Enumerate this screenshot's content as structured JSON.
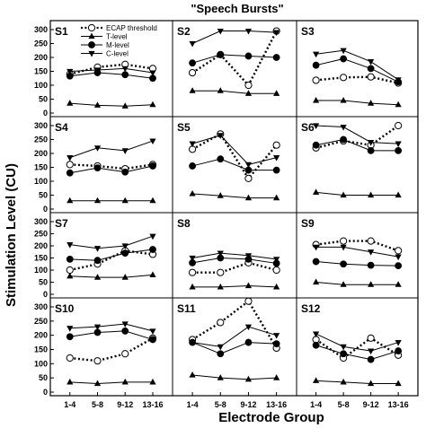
{
  "chart_data": {
    "type": "line",
    "title": "\"Speech Bursts\"",
    "xlabel": "Electrode Group",
    "ylabel": "Stimulation Level (CU)",
    "categories": [
      "1-4",
      "5-8",
      "9-12",
      "13-16"
    ],
    "ylim": [
      0,
      300
    ],
    "yticks": [
      0,
      50,
      100,
      150,
      200,
      250,
      300
    ],
    "grid": false,
    "legend": {
      "placement": "top-left panel",
      "entries": [
        "ECAP threshold",
        "T-level",
        "M-level",
        "C-level"
      ]
    },
    "series_style": {
      "ECAP threshold": {
        "marker": "open-circle",
        "line": "dotted"
      },
      "T-level": {
        "marker": "triangle-up",
        "line": "solid"
      },
      "M-level": {
        "marker": "filled-circle",
        "line": "solid"
      },
      "C-level": {
        "marker": "triangle-down",
        "line": "solid"
      }
    },
    "panels": [
      {
        "label": "S1",
        "series": [
          {
            "name": "ECAP threshold",
            "values": [
              140,
              165,
              175,
              160
            ]
          },
          {
            "name": "T-level",
            "values": [
              35,
              28,
              25,
              30
            ]
          },
          {
            "name": "M-level",
            "values": [
              133,
              145,
              138,
              125
            ]
          },
          {
            "name": "C-level",
            "values": [
              150,
              155,
              160,
              145
            ]
          }
        ]
      },
      {
        "label": "S2",
        "series": [
          {
            "name": "ECAP threshold",
            "values": [
              145,
              210,
              100,
              295
            ]
          },
          {
            "name": "T-level",
            "values": [
              80,
              80,
              70,
              70
            ]
          },
          {
            "name": "M-level",
            "values": [
              180,
              210,
              205,
              200
            ]
          },
          {
            "name": "C-level",
            "values": [
              250,
              295,
              295,
              290
            ]
          }
        ]
      },
      {
        "label": "S3",
        "series": [
          {
            "name": "ECAP threshold",
            "values": [
              118,
              128,
              130,
              108
            ]
          },
          {
            "name": "T-level",
            "values": [
              45,
              45,
              35,
              30
            ]
          },
          {
            "name": "M-level",
            "values": [
              172,
              195,
              160,
              112
            ]
          },
          {
            "name": "C-level",
            "values": [
              212,
              225,
              185,
              120
            ]
          }
        ]
      },
      {
        "label": "S4",
        "series": [
          {
            "name": "ECAP threshold",
            "values": [
              160,
              155,
              145,
              160
            ]
          },
          {
            "name": "T-level",
            "values": [
              30,
              30,
              30,
              30
            ]
          },
          {
            "name": "M-level",
            "values": [
              130,
              148,
              133,
              155
            ]
          },
          {
            "name": "C-level",
            "values": [
              185,
              220,
              210,
              245
            ]
          }
        ]
      },
      {
        "label": "S5",
        "series": [
          {
            "name": "ECAP threshold",
            "values": [
              215,
              270,
              110,
              230
            ]
          },
          {
            "name": "T-level",
            "values": [
              55,
              48,
              40,
              40
            ]
          },
          {
            "name": "M-level",
            "values": [
              155,
              180,
              140,
              140
            ]
          },
          {
            "name": "C-level",
            "values": [
              235,
              265,
              160,
              185
            ]
          }
        ]
      },
      {
        "label": "S6",
        "series": [
          {
            "name": "ECAP threshold",
            "values": [
              220,
              245,
              230,
              300
            ]
          },
          {
            "name": "T-level",
            "values": [
              60,
              50,
              50,
              50
            ]
          },
          {
            "name": "M-level",
            "values": [
              230,
              250,
              210,
              210
            ]
          },
          {
            "name": "C-level",
            "values": [
              300,
              295,
              240,
              235
            ]
          }
        ]
      },
      {
        "label": "S7",
        "series": [
          {
            "name": "ECAP threshold",
            "values": [
              100,
              125,
              180,
              165
            ]
          },
          {
            "name": "T-level",
            "values": [
              75,
              70,
              70,
              80
            ]
          },
          {
            "name": "M-level",
            "values": [
              145,
              140,
              170,
              185
            ]
          },
          {
            "name": "C-level",
            "values": [
              205,
              190,
              200,
              240
            ]
          }
        ]
      },
      {
        "label": "S8",
        "series": [
          {
            "name": "ECAP threshold",
            "values": [
              90,
              90,
              130,
              100
            ]
          },
          {
            "name": "T-level",
            "values": [
              30,
              30,
              35,
              30
            ]
          },
          {
            "name": "M-level",
            "values": [
              130,
              150,
              145,
              128
            ]
          },
          {
            "name": "C-level",
            "values": [
              150,
              170,
              160,
              145
            ]
          }
        ]
      },
      {
        "label": "S9",
        "series": [
          {
            "name": "ECAP threshold",
            "values": [
              205,
              220,
              220,
              180
            ]
          },
          {
            "name": "T-level",
            "values": [
              50,
              40,
              40,
              40
            ]
          },
          {
            "name": "M-level",
            "values": [
              135,
              125,
              120,
              118
            ]
          },
          {
            "name": "C-level",
            "values": [
              195,
              195,
              175,
              155
            ]
          }
        ]
      },
      {
        "label": "S10",
        "series": [
          {
            "name": "ECAP threshold",
            "values": [
              120,
              110,
              135,
              190
            ]
          },
          {
            "name": "T-level",
            "values": [
              35,
              30,
              35,
              35
            ]
          },
          {
            "name": "M-level",
            "values": [
              195,
              210,
              215,
              185
            ]
          },
          {
            "name": "C-level",
            "values": [
              225,
              230,
              240,
              215
            ]
          }
        ]
      },
      {
        "label": "S11",
        "series": [
          {
            "name": "ECAP threshold",
            "values": [
              185,
              245,
              320,
              155
            ]
          },
          {
            "name": "T-level",
            "values": [
              60,
              50,
              45,
              50
            ]
          },
          {
            "name": "M-level",
            "values": [
              175,
              135,
              175,
              170
            ]
          },
          {
            "name": "C-level",
            "values": [
              175,
              160,
              230,
              200
            ]
          }
        ]
      },
      {
        "label": "S12",
        "series": [
          {
            "name": "ECAP threshold",
            "values": [
              185,
              120,
              190,
              130
            ]
          },
          {
            "name": "T-level",
            "values": [
              40,
              35,
              30,
              30
            ]
          },
          {
            "name": "M-level",
            "values": [
              165,
              135,
              115,
              145
            ]
          },
          {
            "name": "C-level",
            "values": [
              205,
              160,
              145,
              175
            ]
          }
        ]
      }
    ]
  }
}
